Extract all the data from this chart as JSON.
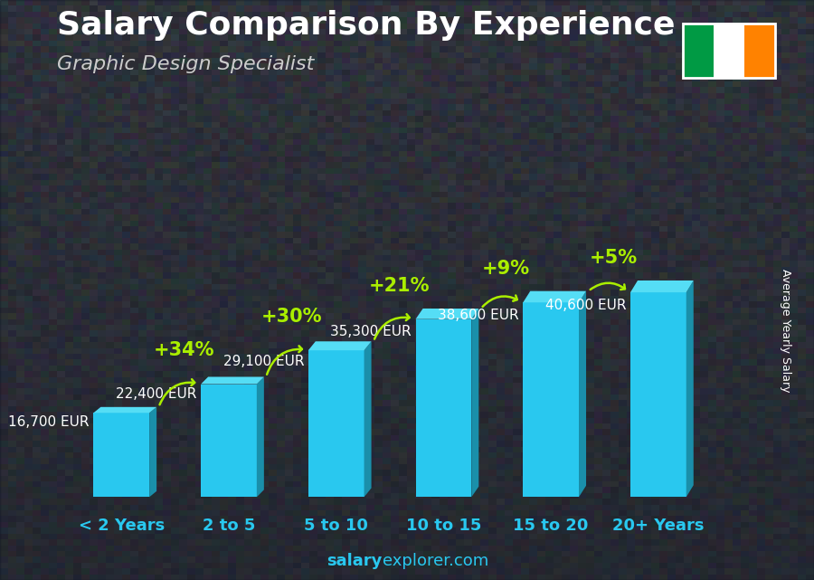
{
  "title": "Salary Comparison By Experience",
  "subtitle": "Graphic Design Specialist",
  "ylabel": "Average Yearly Salary",
  "footer_salary": "salary",
  "footer_rest": "explorer.com",
  "categories": [
    "< 2 Years",
    "2 to 5",
    "5 to 10",
    "10 to 15",
    "15 to 20",
    "20+ Years"
  ],
  "values": [
    16700,
    22400,
    29100,
    35300,
    38600,
    40600
  ],
  "value_labels": [
    "16,700 EUR",
    "22,400 EUR",
    "29,100 EUR",
    "35,300 EUR",
    "38,600 EUR",
    "40,600 EUR"
  ],
  "pct_labels": [
    "+34%",
    "+30%",
    "+21%",
    "+9%",
    "+5%"
  ],
  "bar_face_color": "#29c8ef",
  "bar_side_color": "#1a8faa",
  "bar_top_color": "#55ddf5",
  "pct_color": "#aaee00",
  "cat_color": "#29c8ef",
  "value_color": "white",
  "title_color": "white",
  "subtitle_color": "#cccccc",
  "bg_color": "#1a2030",
  "ylabel_color": "white",
  "footer_salary_color": "white",
  "footer_rest_color": "white",
  "flag_colors": [
    "#009A44",
    "#FFFFFF",
    "#FF8200"
  ],
  "title_fontsize": 26,
  "subtitle_fontsize": 16,
  "value_fontsize": 11,
  "pct_fontsize": 15,
  "cat_fontsize": 13,
  "ylabel_fontsize": 9,
  "footer_fontsize": 13
}
